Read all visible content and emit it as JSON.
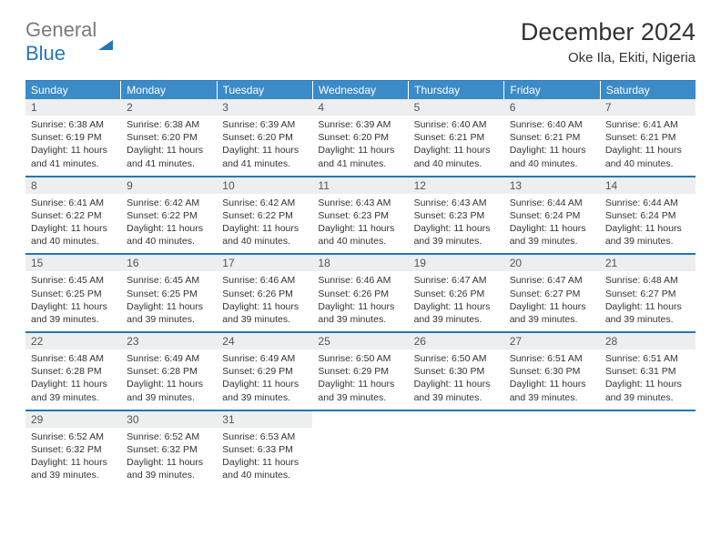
{
  "logo": {
    "word1": "General",
    "word2": "Blue"
  },
  "title": "December 2024",
  "location": "Oke Ila, Ekiti, Nigeria",
  "colors": {
    "header_blue": "#3b8bc8",
    "rule_blue": "#2576b9",
    "daynum_bg": "#eceeef",
    "text": "#333333",
    "logo_gray": "#7a7a7a"
  },
  "weekdays": [
    "Sunday",
    "Monday",
    "Tuesday",
    "Wednesday",
    "Thursday",
    "Friday",
    "Saturday"
  ],
  "weeks": [
    [
      {
        "n": "1",
        "sr": "Sunrise: 6:38 AM",
        "ss": "Sunset: 6:19 PM",
        "d1": "Daylight: 11 hours",
        "d2": "and 41 minutes."
      },
      {
        "n": "2",
        "sr": "Sunrise: 6:38 AM",
        "ss": "Sunset: 6:20 PM",
        "d1": "Daylight: 11 hours",
        "d2": "and 41 minutes."
      },
      {
        "n": "3",
        "sr": "Sunrise: 6:39 AM",
        "ss": "Sunset: 6:20 PM",
        "d1": "Daylight: 11 hours",
        "d2": "and 41 minutes."
      },
      {
        "n": "4",
        "sr": "Sunrise: 6:39 AM",
        "ss": "Sunset: 6:20 PM",
        "d1": "Daylight: 11 hours",
        "d2": "and 41 minutes."
      },
      {
        "n": "5",
        "sr": "Sunrise: 6:40 AM",
        "ss": "Sunset: 6:21 PM",
        "d1": "Daylight: 11 hours",
        "d2": "and 40 minutes."
      },
      {
        "n": "6",
        "sr": "Sunrise: 6:40 AM",
        "ss": "Sunset: 6:21 PM",
        "d1": "Daylight: 11 hours",
        "d2": "and 40 minutes."
      },
      {
        "n": "7",
        "sr": "Sunrise: 6:41 AM",
        "ss": "Sunset: 6:21 PM",
        "d1": "Daylight: 11 hours",
        "d2": "and 40 minutes."
      }
    ],
    [
      {
        "n": "8",
        "sr": "Sunrise: 6:41 AM",
        "ss": "Sunset: 6:22 PM",
        "d1": "Daylight: 11 hours",
        "d2": "and 40 minutes."
      },
      {
        "n": "9",
        "sr": "Sunrise: 6:42 AM",
        "ss": "Sunset: 6:22 PM",
        "d1": "Daylight: 11 hours",
        "d2": "and 40 minutes."
      },
      {
        "n": "10",
        "sr": "Sunrise: 6:42 AM",
        "ss": "Sunset: 6:22 PM",
        "d1": "Daylight: 11 hours",
        "d2": "and 40 minutes."
      },
      {
        "n": "11",
        "sr": "Sunrise: 6:43 AM",
        "ss": "Sunset: 6:23 PM",
        "d1": "Daylight: 11 hours",
        "d2": "and 40 minutes."
      },
      {
        "n": "12",
        "sr": "Sunrise: 6:43 AM",
        "ss": "Sunset: 6:23 PM",
        "d1": "Daylight: 11 hours",
        "d2": "and 39 minutes."
      },
      {
        "n": "13",
        "sr": "Sunrise: 6:44 AM",
        "ss": "Sunset: 6:24 PM",
        "d1": "Daylight: 11 hours",
        "d2": "and 39 minutes."
      },
      {
        "n": "14",
        "sr": "Sunrise: 6:44 AM",
        "ss": "Sunset: 6:24 PM",
        "d1": "Daylight: 11 hours",
        "d2": "and 39 minutes."
      }
    ],
    [
      {
        "n": "15",
        "sr": "Sunrise: 6:45 AM",
        "ss": "Sunset: 6:25 PM",
        "d1": "Daylight: 11 hours",
        "d2": "and 39 minutes."
      },
      {
        "n": "16",
        "sr": "Sunrise: 6:45 AM",
        "ss": "Sunset: 6:25 PM",
        "d1": "Daylight: 11 hours",
        "d2": "and 39 minutes."
      },
      {
        "n": "17",
        "sr": "Sunrise: 6:46 AM",
        "ss": "Sunset: 6:26 PM",
        "d1": "Daylight: 11 hours",
        "d2": "and 39 minutes."
      },
      {
        "n": "18",
        "sr": "Sunrise: 6:46 AM",
        "ss": "Sunset: 6:26 PM",
        "d1": "Daylight: 11 hours",
        "d2": "and 39 minutes."
      },
      {
        "n": "19",
        "sr": "Sunrise: 6:47 AM",
        "ss": "Sunset: 6:26 PM",
        "d1": "Daylight: 11 hours",
        "d2": "and 39 minutes."
      },
      {
        "n": "20",
        "sr": "Sunrise: 6:47 AM",
        "ss": "Sunset: 6:27 PM",
        "d1": "Daylight: 11 hours",
        "d2": "and 39 minutes."
      },
      {
        "n": "21",
        "sr": "Sunrise: 6:48 AM",
        "ss": "Sunset: 6:27 PM",
        "d1": "Daylight: 11 hours",
        "d2": "and 39 minutes."
      }
    ],
    [
      {
        "n": "22",
        "sr": "Sunrise: 6:48 AM",
        "ss": "Sunset: 6:28 PM",
        "d1": "Daylight: 11 hours",
        "d2": "and 39 minutes."
      },
      {
        "n": "23",
        "sr": "Sunrise: 6:49 AM",
        "ss": "Sunset: 6:28 PM",
        "d1": "Daylight: 11 hours",
        "d2": "and 39 minutes."
      },
      {
        "n": "24",
        "sr": "Sunrise: 6:49 AM",
        "ss": "Sunset: 6:29 PM",
        "d1": "Daylight: 11 hours",
        "d2": "and 39 minutes."
      },
      {
        "n": "25",
        "sr": "Sunrise: 6:50 AM",
        "ss": "Sunset: 6:29 PM",
        "d1": "Daylight: 11 hours",
        "d2": "and 39 minutes."
      },
      {
        "n": "26",
        "sr": "Sunrise: 6:50 AM",
        "ss": "Sunset: 6:30 PM",
        "d1": "Daylight: 11 hours",
        "d2": "and 39 minutes."
      },
      {
        "n": "27",
        "sr": "Sunrise: 6:51 AM",
        "ss": "Sunset: 6:30 PM",
        "d1": "Daylight: 11 hours",
        "d2": "and 39 minutes."
      },
      {
        "n": "28",
        "sr": "Sunrise: 6:51 AM",
        "ss": "Sunset: 6:31 PM",
        "d1": "Daylight: 11 hours",
        "d2": "and 39 minutes."
      }
    ],
    [
      {
        "n": "29",
        "sr": "Sunrise: 6:52 AM",
        "ss": "Sunset: 6:32 PM",
        "d1": "Daylight: 11 hours",
        "d2": "and 39 minutes."
      },
      {
        "n": "30",
        "sr": "Sunrise: 6:52 AM",
        "ss": "Sunset: 6:32 PM",
        "d1": "Daylight: 11 hours",
        "d2": "and 39 minutes."
      },
      {
        "n": "31",
        "sr": "Sunrise: 6:53 AM",
        "ss": "Sunset: 6:33 PM",
        "d1": "Daylight: 11 hours",
        "d2": "and 40 minutes."
      },
      null,
      null,
      null,
      null
    ]
  ]
}
